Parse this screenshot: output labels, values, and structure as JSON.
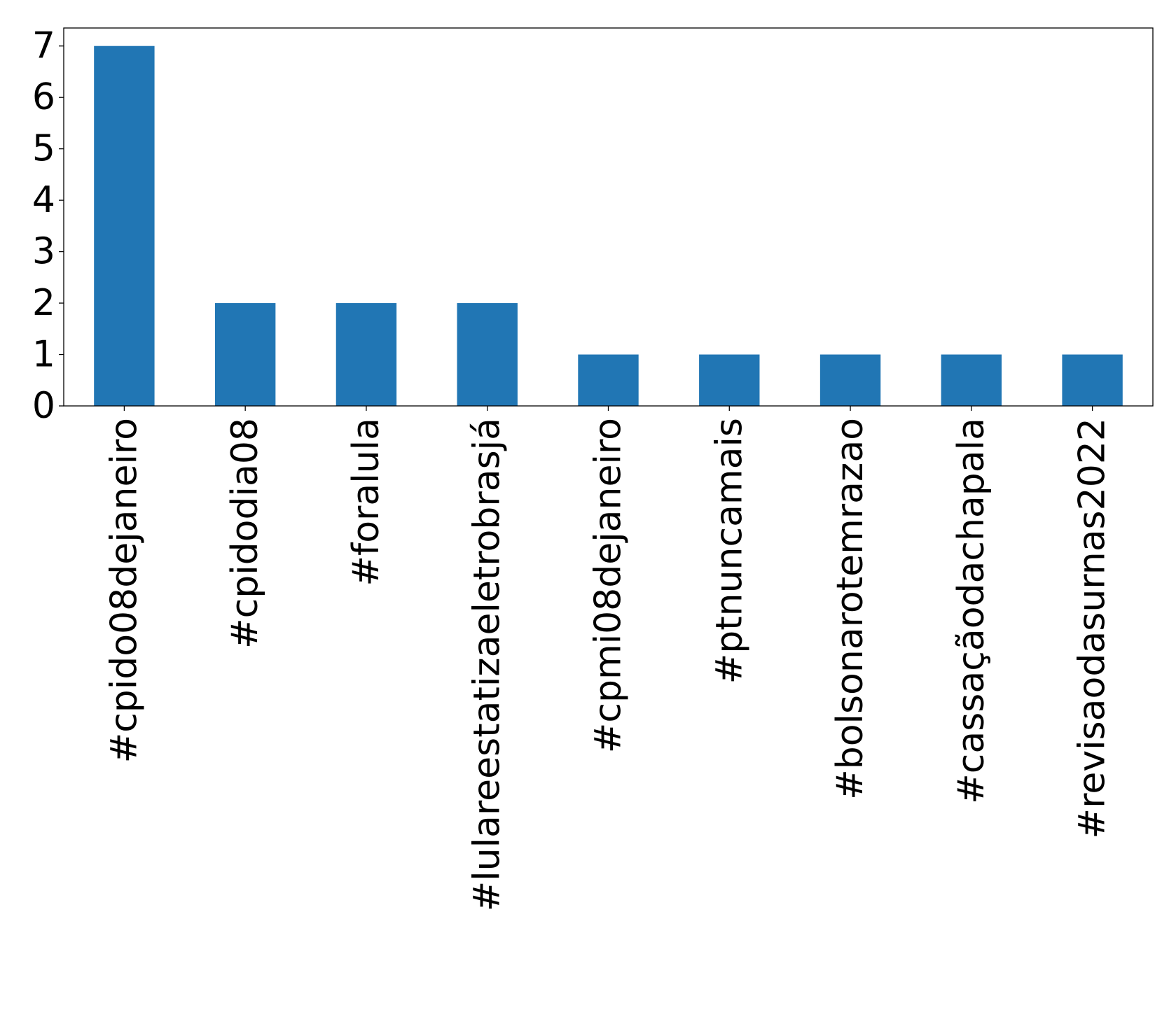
{
  "chart_data": {
    "type": "bar",
    "categories": [
      "#cpido08dejaneiro",
      "#cpidodia08",
      "#foralula",
      "#lulareestatizaeletrobrasjá",
      "#cpmi08dejaneiro",
      "#ptnuncamais",
      "#bolsonarotemrazao",
      "#cassaçãodachapala",
      "#revisaodasurnas2022"
    ],
    "values": [
      7,
      2,
      2,
      2,
      1,
      1,
      1,
      1,
      1
    ],
    "y_ticks": [
      0,
      1,
      2,
      3,
      4,
      5,
      6,
      7
    ],
    "ylim": [
      0,
      7.35
    ],
    "bar_color": "#2176b4",
    "grid": false,
    "legend": "none"
  }
}
